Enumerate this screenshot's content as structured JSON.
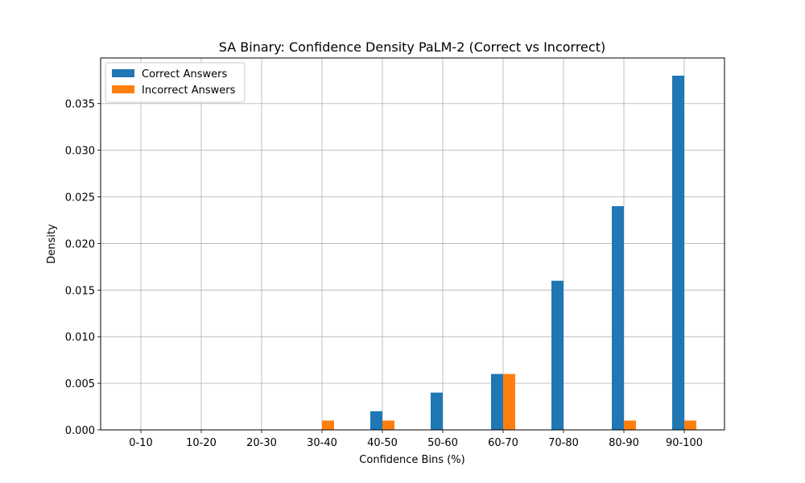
{
  "chart_data": {
    "type": "bar",
    "title": "SA Binary: Confidence Density PaLM-2 (Correct vs Incorrect)",
    "xlabel": "Confidence Bins (%)",
    "ylabel": "Density",
    "categories": [
      "0-10",
      "10-20",
      "20-30",
      "30-40",
      "40-50",
      "50-60",
      "60-70",
      "70-80",
      "80-90",
      "90-100"
    ],
    "series": [
      {
        "name": "Correct Answers",
        "color": "#1f77b4",
        "values": [
          0,
          0,
          0,
          0,
          0.002,
          0.004,
          0.006,
          0.016,
          0.024,
          0.038
        ]
      },
      {
        "name": "Incorrect Answers",
        "color": "#ff7f0e",
        "values": [
          0,
          0,
          0,
          0.001,
          0.001,
          0,
          0.006,
          0,
          0.001,
          0.001
        ]
      }
    ],
    "ylim": [
      0,
      0.0399
    ],
    "yticks": [
      "0.000",
      "0.005",
      "0.010",
      "0.015",
      "0.020",
      "0.025",
      "0.030",
      "0.035"
    ],
    "grid": true,
    "legend_position": "top-left"
  }
}
